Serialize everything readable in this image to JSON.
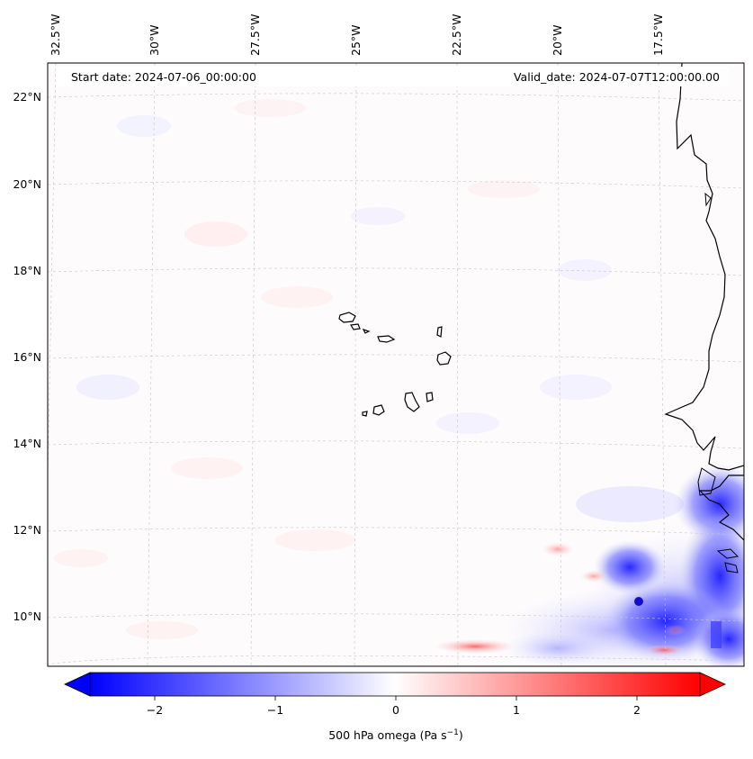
{
  "map": {
    "start_label": "Start date: 2024-07-06_00:00:00",
    "valid_label": "Valid_date: 2024-07-07T12:00:00.00",
    "lon_labels": [
      "32.5°W",
      "30°W",
      "27.5°W",
      "25°W",
      "22.5°W",
      "20°W",
      "17.5°W"
    ],
    "lat_labels": [
      "22°N",
      "20°N",
      "18°N",
      "16°N",
      "14°N",
      "12°N",
      "10°N"
    ]
  },
  "colorbar": {
    "tick_labels": [
      "−2",
      "−1",
      "0",
      "1",
      "2"
    ],
    "label_main": "500 hPa omega (Pa s",
    "label_sup": "−1",
    "label_end": ")"
  },
  "colors": {
    "negative": "#0000ff",
    "neutral": "#ffffff",
    "positive": "#ff0000",
    "coast": "#000000"
  }
}
